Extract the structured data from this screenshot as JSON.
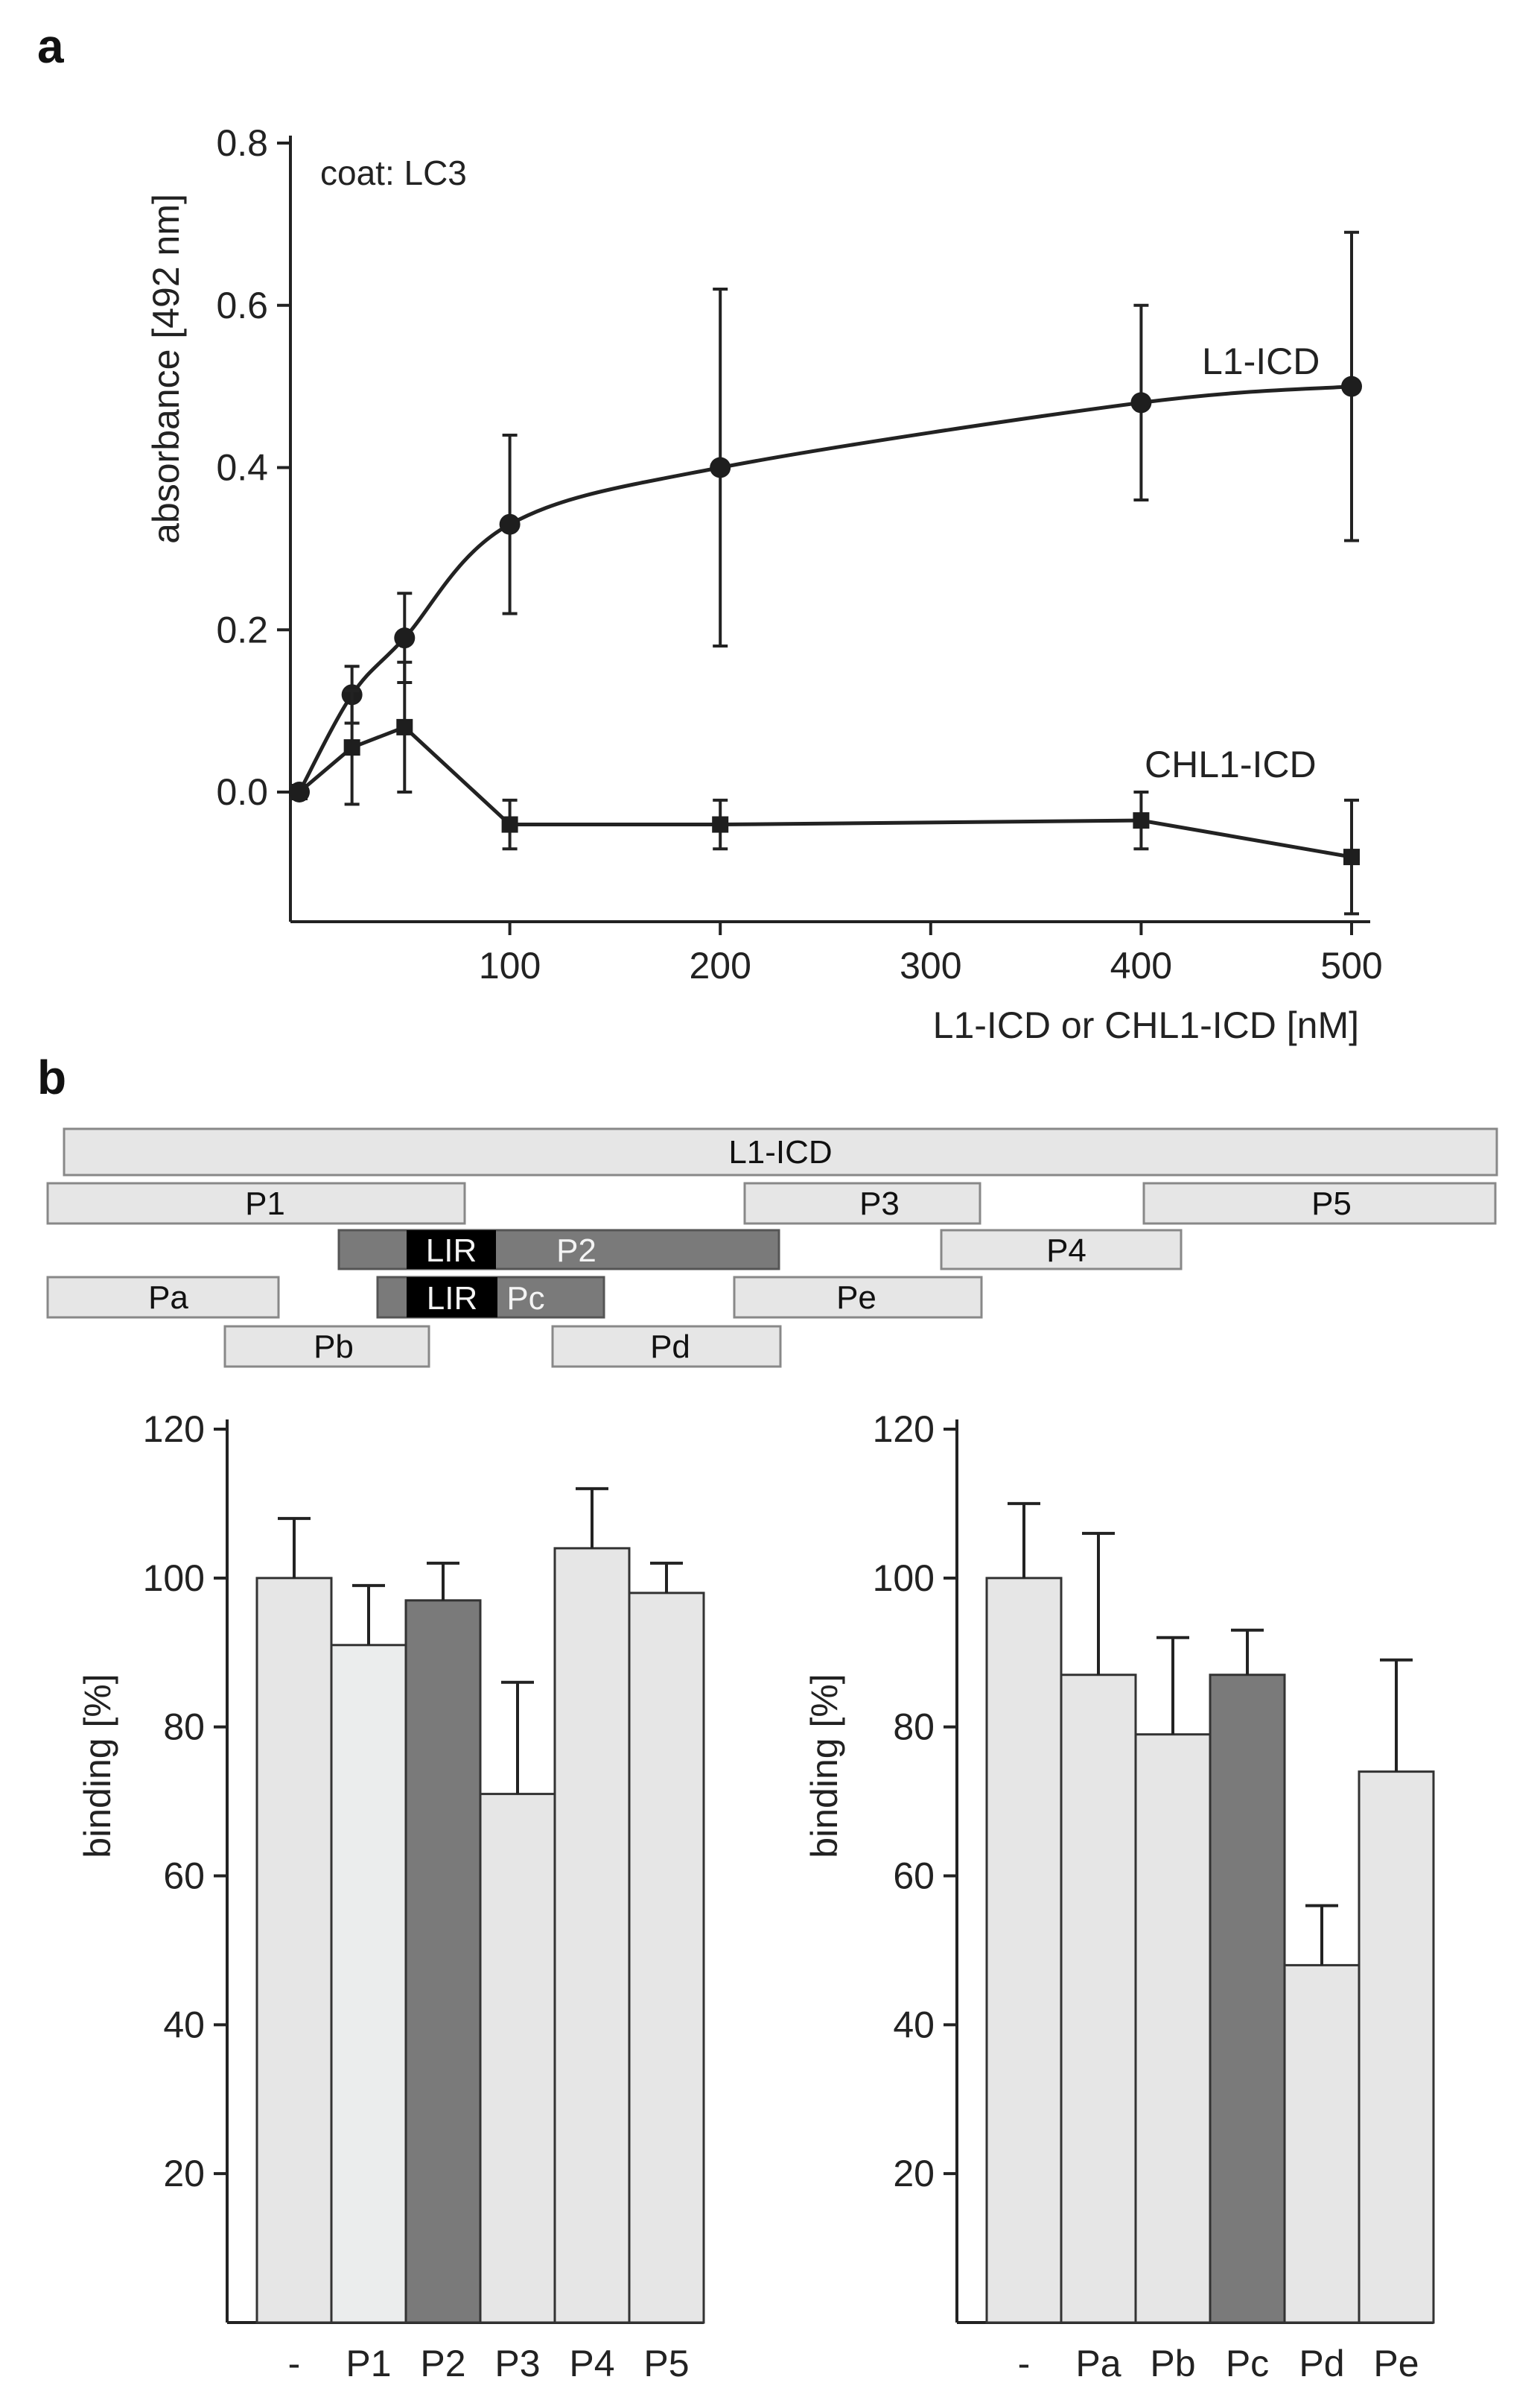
{
  "panel_a_label": "a",
  "panel_b_label": "b",
  "colors": {
    "light": "#e6e6e6",
    "lighter": "#ebeded",
    "dark": "#7a7a7a",
    "black": "#000000"
  },
  "domain_map": {
    "full_label": "L1-ICD",
    "lir_label": "LIR",
    "segments": [
      {
        "label": "P1",
        "style": "light"
      },
      {
        "label": "P3",
        "style": "light"
      },
      {
        "label": "P5",
        "style": "light"
      },
      {
        "label": "P2",
        "style": "dark"
      },
      {
        "label": "P4",
        "style": "light"
      },
      {
        "label": "Pa",
        "style": "light"
      },
      {
        "label": "Pc",
        "style": "dark"
      },
      {
        "label": "Pe",
        "style": "light"
      },
      {
        "label": "Pb",
        "style": "light"
      },
      {
        "label": "Pd",
        "style": "light"
      }
    ]
  },
  "chart_data": [
    {
      "type": "line",
      "title": "",
      "annotation": "coat: LC3",
      "xlabel": "L1-ICD or CHL1-ICD  [nM]",
      "ylabel": "absorbance [492 nm]",
      "xlim": [
        -10,
        520
      ],
      "ylim": [
        -0.16,
        0.8
      ],
      "xticks": [
        100,
        200,
        300,
        400,
        500
      ],
      "xtick_labels": [
        "100",
        "200",
        "300",
        "400",
        "500"
      ],
      "yticks": [
        0.0,
        0.2,
        0.4,
        0.6,
        0.8
      ],
      "ytick_labels": [
        "0.0",
        "0.2",
        "0.4",
        "0.6",
        "0.8"
      ],
      "series": [
        {
          "name": "L1-ICD",
          "marker": "circle",
          "x": [
            0,
            25,
            50,
            100,
            200,
            400,
            500
          ],
          "y": [
            0.0,
            0.12,
            0.19,
            0.33,
            0.4,
            0.48,
            0.5
          ],
          "err": [
            0.0,
            0.035,
            0.055,
            0.11,
            0.22,
            0.12,
            0.19
          ]
        },
        {
          "name": "CHL1-ICD",
          "marker": "square",
          "x": [
            0,
            25,
            50,
            100,
            200,
            400,
            500
          ],
          "y": [
            0.0,
            0.055,
            0.08,
            -0.04,
            -0.04,
            -0.035,
            -0.08
          ],
          "err": [
            0.0,
            0.07,
            0.08,
            0.03,
            0.03,
            0.035,
            0.07
          ]
        }
      ]
    },
    {
      "type": "bar",
      "ylabel": "binding [%]",
      "ylim": [
        0,
        120
      ],
      "yticks": [
        20,
        40,
        60,
        80,
        100,
        120
      ],
      "ytick_labels": [
        "20",
        "40",
        "60",
        "80",
        "100",
        "120"
      ],
      "categories": [
        "-",
        "P1",
        "P2",
        "P3",
        "P4",
        "P5"
      ],
      "values": [
        100,
        91,
        97,
        71,
        104,
        98
      ],
      "err": [
        8,
        8,
        5,
        15,
        8,
        4
      ],
      "styles": [
        "light",
        "lighter",
        "dark",
        "light",
        "light",
        "light"
      ]
    },
    {
      "type": "bar",
      "ylabel": "binding [%]",
      "ylim": [
        0,
        120
      ],
      "yticks": [
        20,
        40,
        60,
        80,
        100,
        120
      ],
      "ytick_labels": [
        "20",
        "40",
        "60",
        "80",
        "100",
        "120"
      ],
      "categories": [
        "-",
        "Pa",
        "Pb",
        "Pc",
        "Pd",
        "Pe"
      ],
      "values": [
        100,
        87,
        79,
        87,
        48,
        74
      ],
      "err": [
        10,
        19,
        13,
        6,
        8,
        15
      ],
      "styles": [
        "light",
        "light",
        "light",
        "dark",
        "light",
        "light"
      ]
    }
  ]
}
